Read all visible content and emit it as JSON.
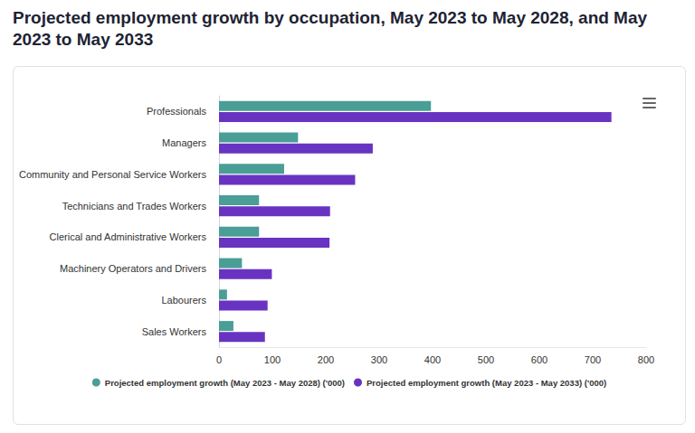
{
  "chart_data": {
    "type": "bar",
    "title": "Projected employment growth by occupation, May 2023 to May 2028, and May 2023 to May 2033",
    "orientation": "horizontal",
    "categories": [
      "Professionals",
      "Managers",
      "Community and Personal Service Workers",
      "Technicians and Trades Workers",
      "Clerical and Administrative Workers",
      "Machinery Operators and Drivers",
      "Labourers",
      "Sales Workers"
    ],
    "series": [
      {
        "name": "Projected employment growth (May 2023 - May 2028) ('000)",
        "color": "#4a9e96",
        "values": [
          397,
          148,
          122,
          75,
          75,
          43,
          15,
          27
        ]
      },
      {
        "name": "Projected employment growth (May 2023 - May 2033) ('000)",
        "color": "#6933c2",
        "values": [
          735,
          288,
          255,
          208,
          207,
          99,
          91,
          86
        ]
      }
    ],
    "xlim": [
      0,
      800
    ],
    "xticks": [
      0,
      100,
      200,
      300,
      400,
      500,
      600,
      700,
      800
    ],
    "grid": false,
    "legend": "bottom"
  }
}
